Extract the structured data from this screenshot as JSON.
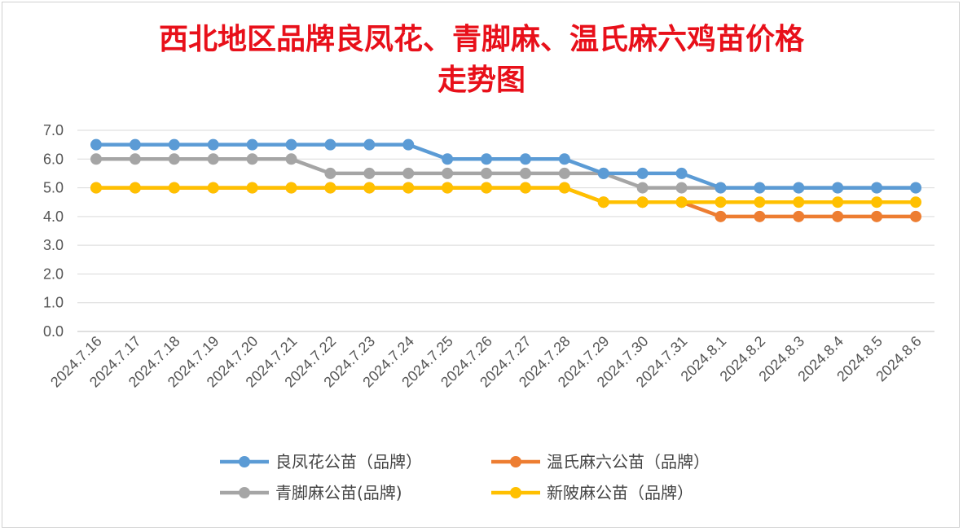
{
  "chart_data": {
    "type": "line",
    "title_line1": "西北地区品牌良凤花、青脚麻、温氏麻六鸡苗价格",
    "title_line2": "走势图",
    "xlabel": "",
    "ylabel": "",
    "ylim": [
      0,
      7
    ],
    "yticks": [
      "0.0",
      "1.0",
      "2.0",
      "3.0",
      "4.0",
      "5.0",
      "6.0",
      "7.0"
    ],
    "grid": true,
    "legend_position": "bottom",
    "categories": [
      "2024.7.16",
      "2024.7.17",
      "2024.7.18",
      "2024.7.19",
      "2024.7.20",
      "2024.7.21",
      "2024.7.22",
      "2024.7.23",
      "2024.7.24",
      "2024.7.25",
      "2024.7.26",
      "2024.7.27",
      "2024.7.28",
      "2024.7.29",
      "2024.7.30",
      "2024.7.31",
      "2024.8.1",
      "2024.8.2",
      "2024.8.3",
      "2024.8.4",
      "2024.8.5",
      "2024.8.6"
    ],
    "series": [
      {
        "name": "良凤花公苗（品牌）",
        "color": "#5b9bd5",
        "values": [
          6.5,
          6.5,
          6.5,
          6.5,
          6.5,
          6.5,
          6.5,
          6.5,
          6.5,
          6.0,
          6.0,
          6.0,
          6.0,
          5.5,
          5.5,
          5.5,
          5.0,
          5.0,
          5.0,
          5.0,
          5.0,
          5.0
        ]
      },
      {
        "name": "温氏麻六公苗（品牌）",
        "color": "#ed7d31",
        "values": [
          5.0,
          5.0,
          5.0,
          5.0,
          5.0,
          5.0,
          5.0,
          5.0,
          5.0,
          5.0,
          5.0,
          5.0,
          5.0,
          4.5,
          4.5,
          4.5,
          4.0,
          4.0,
          4.0,
          4.0,
          4.0,
          4.0
        ]
      },
      {
        "name": "青脚麻公苗(品牌)",
        "color": "#a5a5a5",
        "values": [
          6.0,
          6.0,
          6.0,
          6.0,
          6.0,
          6.0,
          5.5,
          5.5,
          5.5,
          5.5,
          5.5,
          5.5,
          5.5,
          5.5,
          5.0,
          5.0,
          5.0,
          5.0,
          5.0,
          5.0,
          5.0,
          5.0
        ]
      },
      {
        "name": "新陂麻公苗（品牌）",
        "color": "#ffc000",
        "values": [
          5.0,
          5.0,
          5.0,
          5.0,
          5.0,
          5.0,
          5.0,
          5.0,
          5.0,
          5.0,
          5.0,
          5.0,
          5.0,
          4.5,
          4.5,
          4.5,
          4.5,
          4.5,
          4.5,
          4.5,
          4.5,
          4.5
        ]
      }
    ]
  }
}
